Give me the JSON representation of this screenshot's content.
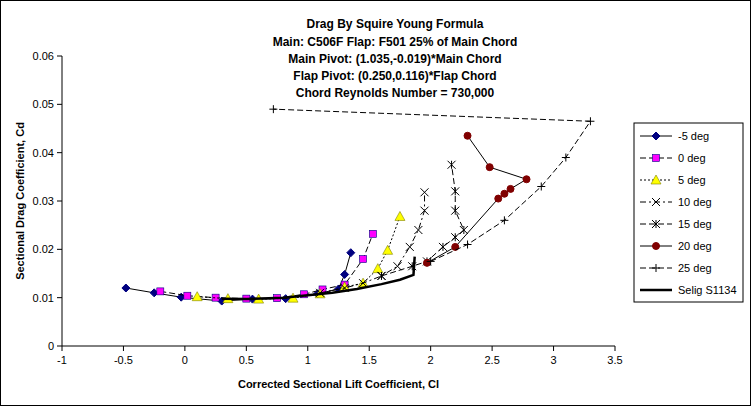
{
  "chart_data": {
    "type": "line",
    "title": "Drag By Squire Young Formula",
    "subtitle": [
      "Main: C506F  Flap: F501  25% of Main Chord",
      "Main Pivot: (1.035,-0.019)*Main Chord",
      "Flap Pivot: (0.250,0.116)*Flap Chord",
      "Chord Reynolds Number = 730,000"
    ],
    "x_label": "Corrected Sectional Lift Coefficient, Cl",
    "y_label": "Sectional Drag Coefficient, Cd",
    "xlim": [
      -1,
      3.5
    ],
    "ylim": [
      0,
      0.06
    ],
    "xticks": [
      -1,
      -0.5,
      0,
      0.5,
      1,
      1.5,
      2,
      2.5,
      3,
      3.5
    ],
    "yticks": [
      0,
      0.01,
      0.02,
      0.03,
      0.04,
      0.05,
      0.06
    ],
    "grid": false,
    "legend": "right",
    "series": [
      {
        "name": "-5 deg",
        "color": "#000080",
        "marker": "diamond",
        "line_style": "solid",
        "x": [
          -0.48,
          -0.25,
          -0.03,
          0.3,
          0.55,
          0.82,
          1.08,
          1.25,
          1.3,
          1.35
        ],
        "values": [
          0.012,
          0.011,
          0.0101,
          0.0093,
          0.0097,
          0.0098,
          0.0108,
          0.0118,
          0.0148,
          0.0193
        ]
      },
      {
        "name": "0 deg",
        "color": "#ff00ff",
        "marker": "square",
        "line_style": "dashed",
        "x": [
          -0.2,
          0.02,
          0.25,
          0.5,
          0.75,
          0.97,
          1.12,
          1.3,
          1.45,
          1.53
        ],
        "values": [
          0.0113,
          0.0104,
          0.01,
          0.0098,
          0.0099,
          0.0107,
          0.0117,
          0.0127,
          0.018,
          0.0232
        ]
      },
      {
        "name": "5 deg",
        "color": "#ffff00",
        "marker": "triangle",
        "line_style": "dotted",
        "x": [
          0.1,
          0.35,
          0.6,
          0.88,
          1.1,
          1.3,
          1.45,
          1.57,
          1.65,
          1.75
        ],
        "values": [
          0.0102,
          0.0098,
          0.0097,
          0.0099,
          0.0108,
          0.0122,
          0.013,
          0.016,
          0.0198,
          0.0268
        ]
      },
      {
        "name": "10 deg",
        "color": "#000000",
        "marker": "x",
        "line_style": "dashdot",
        "x": [
          1.1,
          1.3,
          1.45,
          1.6,
          1.73,
          1.83,
          1.9,
          1.95,
          1.95
        ],
        "values": [
          0.011,
          0.012,
          0.013,
          0.0145,
          0.0165,
          0.0205,
          0.024,
          0.028,
          0.0318
        ]
      },
      {
        "name": "15 deg",
        "color": "#000000",
        "marker": "star",
        "line_style": "dashed",
        "x": [
          1.6,
          1.85,
          1.97,
          2.1,
          2.2,
          2.27,
          2.2,
          2.2,
          2.17
        ],
        "values": [
          0.0145,
          0.0165,
          0.0175,
          0.0205,
          0.0225,
          0.024,
          0.028,
          0.032,
          0.0375
        ]
      },
      {
        "name": "20 deg",
        "color": "#800000",
        "marker": "circle",
        "line_style": "solid",
        "x": [
          1.97,
          2.2,
          2.55,
          2.6,
          2.65,
          2.78,
          2.48,
          2.3
        ],
        "values": [
          0.0172,
          0.0205,
          0.0305,
          0.0315,
          0.0325,
          0.0345,
          0.037,
          0.0435
        ]
      },
      {
        "name": "25 deg",
        "color": "#000000",
        "marker": "plus",
        "line_style": "dashed",
        "x": [
          2.0,
          2.3,
          2.6,
          2.9,
          3.1,
          3.3,
          0.72
        ],
        "values": [
          0.0175,
          0.021,
          0.026,
          0.033,
          0.039,
          0.0465,
          0.049
        ]
      },
      {
        "name": "Selig S1134",
        "color": "#000000",
        "marker": "none",
        "line_style": "solid",
        "x": [
          0.3,
          0.5,
          0.8,
          1.0,
          1.2,
          1.4,
          1.6,
          1.75,
          1.86,
          1.87
        ],
        "values": [
          0.0098,
          0.0097,
          0.01,
          0.0105,
          0.011,
          0.0118,
          0.0128,
          0.0137,
          0.0147,
          0.0185
        ]
      }
    ]
  }
}
